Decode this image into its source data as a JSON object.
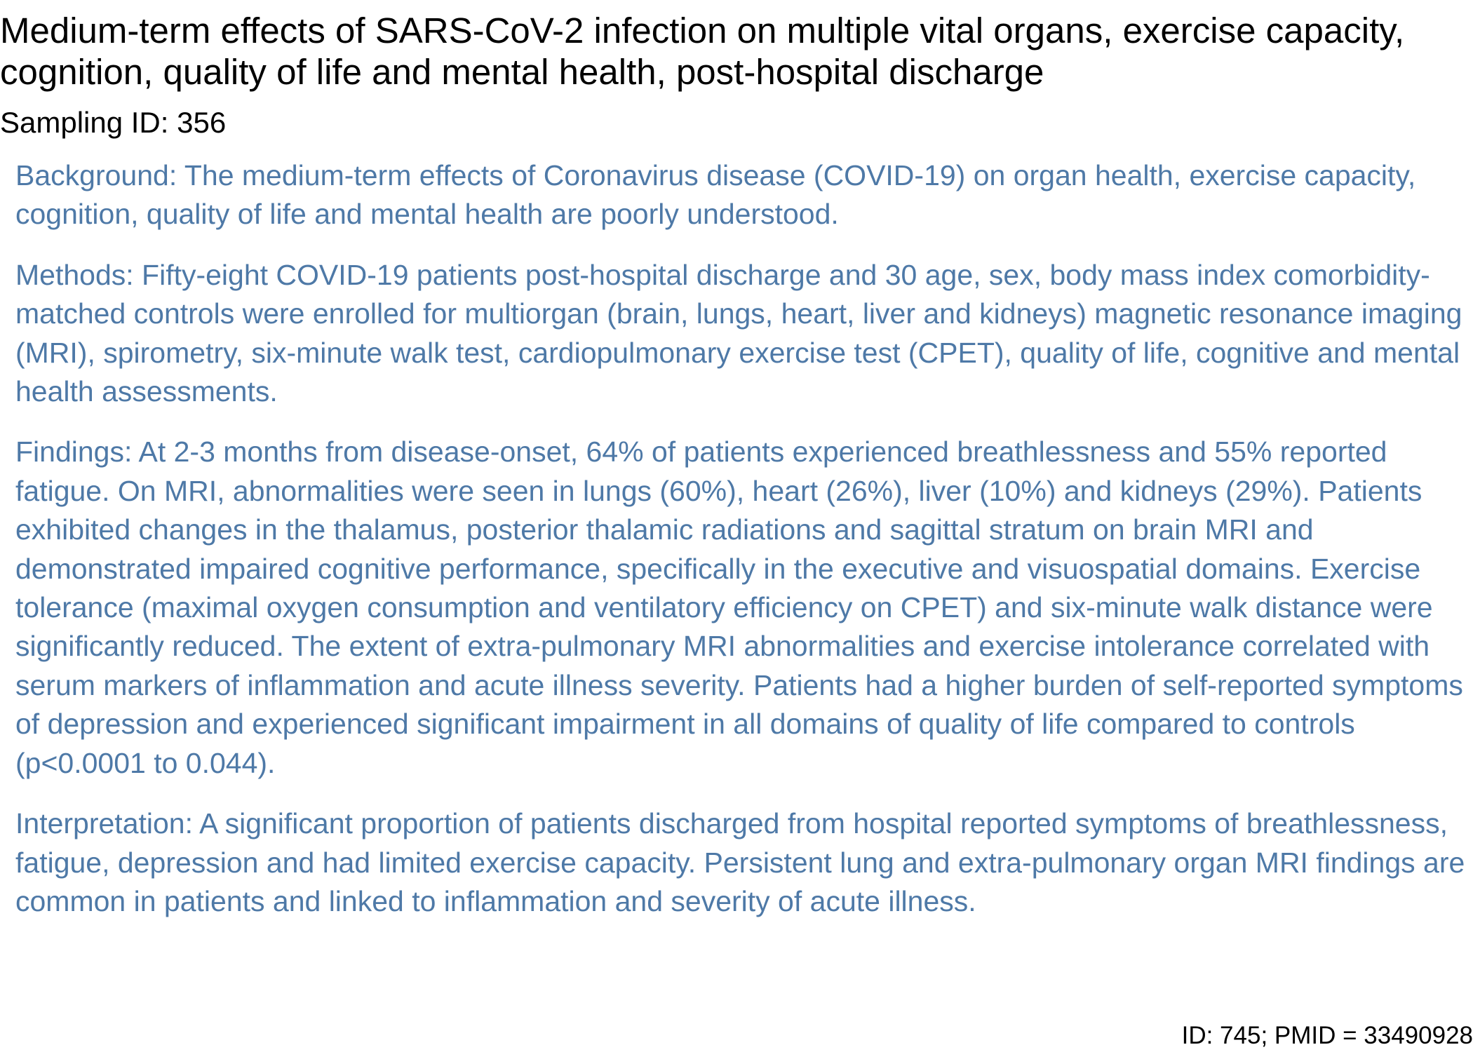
{
  "title": "Medium-term effects of SARS-CoV-2 infection on multiple vital organs, exercise capacity, cognition, quality of life and mental health, post-hospital discharge",
  "sampling_id": "Sampling ID: 356",
  "abstract": {
    "background": "Background: The medium-term effects of Coronavirus disease (COVID-19) on organ health, exercise capacity, cognition, quality of life and mental health are poorly understood.",
    "methods": "Methods: Fifty-eight COVID-19 patients post-hospital discharge and 30 age, sex, body mass index comorbidity-matched controls were enrolled for multiorgan (brain, lungs, heart, liver and kidneys) magnetic resonance imaging (MRI), spirometry, six-minute walk test, cardiopulmonary exercise test (CPET), quality of life, cognitive and mental health assessments.",
    "findings": "Findings: At 2-3 months from disease-onset, 64% of patients experienced breathlessness and 55% reported fatigue. On MRI, abnormalities were seen in lungs (60%), heart (26%), liver (10%) and kidneys (29%). Patients exhibited changes in the thalamus, posterior thalamic radiations and sagittal stratum on brain MRI and demonstrated impaired cognitive performance, specifically in the executive and visuospatial domains. Exercise tolerance (maximal oxygen consumption and ventilatory efficiency on CPET) and six-minute walk distance were significantly reduced. The extent of extra-pulmonary MRI abnormalities and exercise intolerance correlated with serum markers of inflammation and acute illness severity. Patients had a higher burden of self-reported symptoms of depression and experienced significant impairment in all domains of quality of life compared to controls (p<0.0001 to 0.044).",
    "interpretation": "Interpretation: A significant proportion of patients discharged from hospital reported symptoms of breathlessness, fatigue, depression and had limited exercise capacity. Persistent lung and extra-pulmonary organ MRI findings are common in patients and linked to inflammation and severity of acute illness."
  },
  "footer": "ID: 745; PMID = 33490928",
  "colors": {
    "abstract_text": "#4e79a7",
    "title_text": "#000000"
  }
}
